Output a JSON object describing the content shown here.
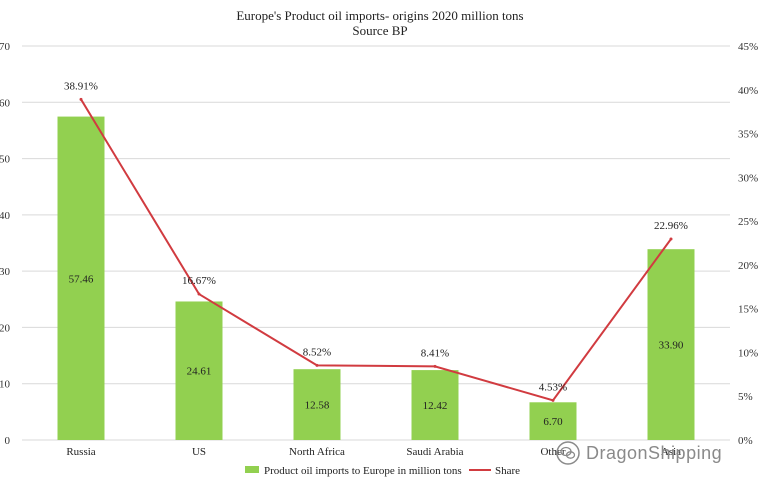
{
  "chart_data": {
    "type": "bar",
    "title": "Europe's Product oil imports- origins 2020 million tons",
    "subtitle": "Source BP",
    "categories": [
      "Russia",
      "US",
      "North Africa",
      "Saudi Arabia",
      "Other",
      "Asia"
    ],
    "series": [
      {
        "name": "Product oil imports to Europe in million tons",
        "type": "bar",
        "axis": "left",
        "color": "#92d050",
        "values": [
          57.46,
          24.61,
          12.58,
          12.42,
          6.7,
          33.9
        ],
        "labels": [
          "57.46",
          "24.61",
          "12.58",
          "12.42",
          "6.70",
          "33.90"
        ]
      },
      {
        "name": "Share",
        "type": "line",
        "axis": "right",
        "color": "#d13b40",
        "values": [
          38.91,
          16.67,
          8.52,
          8.41,
          4.53,
          22.96
        ],
        "labels": [
          "38.91%",
          "16.67%",
          "8.52%",
          "8.41%",
          "4.53%",
          "22.96%"
        ]
      }
    ],
    "y_left": {
      "ylim": [
        0,
        70
      ],
      "ticks": [
        "0",
        "10",
        "20",
        "30",
        "40",
        "50",
        "60",
        "70"
      ]
    },
    "y_right": {
      "ylim": [
        0,
        45
      ],
      "ticks": [
        "0%",
        "5%",
        "10%",
        "15%",
        "20%",
        "25%",
        "30%",
        "35%",
        "40%",
        "45%"
      ]
    },
    "grid": true,
    "legend_position": "bottom"
  },
  "watermark": {
    "text": "DragonShipping",
    "icon": "wechat-logo-icon"
  }
}
